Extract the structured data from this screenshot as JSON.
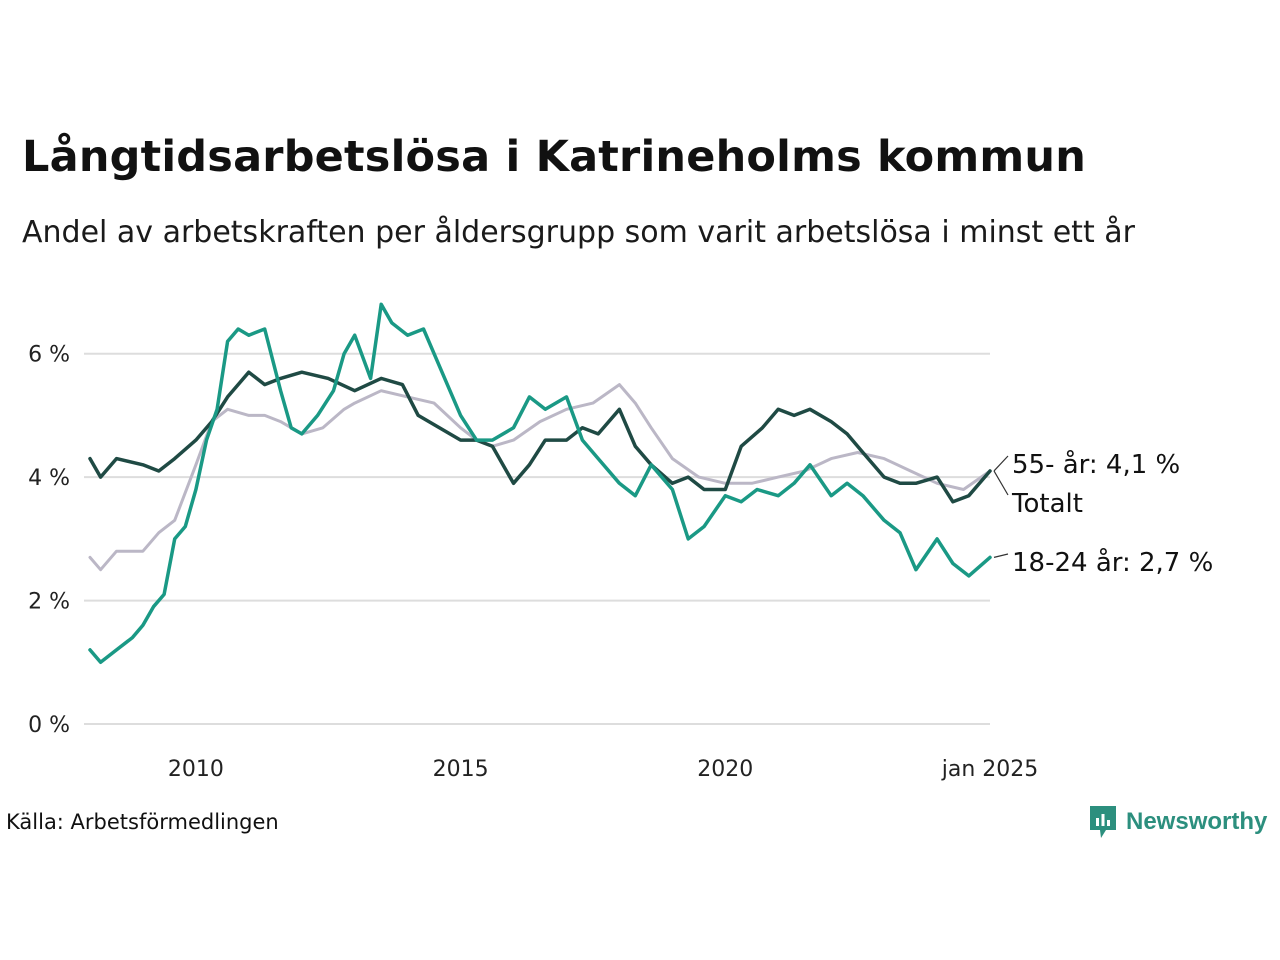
{
  "title": "Långtidsarbetslösa i Katrineholms kommun",
  "subtitle": "Andel av arbetskraften per åldersgrupp som varit arbetslösa i minst ett år",
  "source": "Källa: Arbetsförmedlingen",
  "brand": "Newsworthy",
  "colors": {
    "young": "#1a9985",
    "total": "#1f4a44",
    "old": "#bbb7c6",
    "grid": "#dddddd",
    "brand": "#2c8f7e"
  },
  "chart_data": {
    "type": "line",
    "ylim": [
      0,
      7
    ],
    "yticks": [
      {
        "v": 0,
        "label": "0 %"
      },
      {
        "v": 2,
        "label": "2 %"
      },
      {
        "v": 4,
        "label": "4 %"
      },
      {
        "v": 6,
        "label": "6 %"
      }
    ],
    "xticks": [
      {
        "v": 2010,
        "label": "2010"
      },
      {
        "v": 2015,
        "label": "2015"
      },
      {
        "v": 2020,
        "label": "2020"
      },
      {
        "v": 2025,
        "label": "jan 2025"
      }
    ],
    "series": [
      {
        "key": "old",
        "label": "55- år: 4,1 %",
        "x": [
          2008.0,
          2008.2,
          2008.5,
          2009.0,
          2009.3,
          2009.6,
          2010.0,
          2010.3,
          2010.6,
          2011.0,
          2011.3,
          2011.6,
          2012.0,
          2012.4,
          2012.8,
          2013.0,
          2013.5,
          2014.0,
          2014.5,
          2015.0,
          2015.3,
          2015.6,
          2016.0,
          2016.5,
          2017.0,
          2017.5,
          2018.0,
          2018.3,
          2018.6,
          2019.0,
          2019.5,
          2020.0,
          2020.5,
          2021.0,
          2021.5,
          2022.0,
          2022.5,
          2023.0,
          2023.5,
          2024.0,
          2024.5,
          2025.0
        ],
        "y": [
          2.7,
          2.5,
          2.8,
          2.8,
          3.1,
          3.3,
          4.2,
          4.9,
          5.1,
          5.0,
          5.0,
          4.9,
          4.7,
          4.8,
          5.1,
          5.2,
          5.4,
          5.3,
          5.2,
          4.8,
          4.6,
          4.5,
          4.6,
          4.9,
          5.1,
          5.2,
          5.5,
          5.2,
          4.8,
          4.3,
          4.0,
          3.9,
          3.9,
          4.0,
          4.1,
          4.3,
          4.4,
          4.3,
          4.1,
          3.9,
          3.8,
          4.1
        ]
      },
      {
        "key": "total",
        "label": "Totalt",
        "x": [
          2008.0,
          2008.2,
          2008.5,
          2009.0,
          2009.3,
          2009.6,
          2010.0,
          2010.3,
          2010.6,
          2011.0,
          2011.3,
          2011.6,
          2012.0,
          2012.5,
          2013.0,
          2013.5,
          2013.9,
          2014.2,
          2014.6,
          2015.0,
          2015.3,
          2015.6,
          2016.0,
          2016.3,
          2016.6,
          2017.0,
          2017.3,
          2017.6,
          2018.0,
          2018.3,
          2018.6,
          2019.0,
          2019.3,
          2019.6,
          2020.0,
          2020.3,
          2020.7,
          2021.0,
          2021.3,
          2021.6,
          2022.0,
          2022.3,
          2022.6,
          2023.0,
          2023.3,
          2023.6,
          2024.0,
          2024.3,
          2024.6,
          2025.0
        ],
        "y": [
          4.3,
          4.0,
          4.3,
          4.2,
          4.1,
          4.3,
          4.6,
          4.9,
          5.3,
          5.7,
          5.5,
          5.6,
          5.7,
          5.6,
          5.4,
          5.6,
          5.5,
          5.0,
          4.8,
          4.6,
          4.6,
          4.5,
          3.9,
          4.2,
          4.6,
          4.6,
          4.8,
          4.7,
          5.1,
          4.5,
          4.2,
          3.9,
          4.0,
          3.8,
          3.8,
          4.5,
          4.8,
          5.1,
          5.0,
          5.1,
          4.9,
          4.7,
          4.4,
          4.0,
          3.9,
          3.9,
          4.0,
          3.6,
          3.7,
          4.1
        ]
      },
      {
        "key": "young",
        "label": "18-24 år: 2,7 %",
        "x": [
          2008.0,
          2008.2,
          2008.5,
          2008.8,
          2009.0,
          2009.2,
          2009.4,
          2009.6,
          2009.8,
          2010.0,
          2010.2,
          2010.4,
          2010.6,
          2010.8,
          2011.0,
          2011.3,
          2011.6,
          2011.8,
          2012.0,
          2012.3,
          2012.6,
          2012.8,
          2013.0,
          2013.3,
          2013.5,
          2013.7,
          2014.0,
          2014.3,
          2014.6,
          2015.0,
          2015.3,
          2015.6,
          2016.0,
          2016.3,
          2016.6,
          2017.0,
          2017.3,
          2017.6,
          2018.0,
          2018.3,
          2018.6,
          2019.0,
          2019.3,
          2019.6,
          2020.0,
          2020.3,
          2020.6,
          2021.0,
          2021.3,
          2021.6,
          2022.0,
          2022.3,
          2022.6,
          2023.0,
          2023.3,
          2023.6,
          2024.0,
          2024.3,
          2024.6,
          2025.0
        ],
        "y": [
          1.2,
          1.0,
          1.2,
          1.4,
          1.6,
          1.9,
          2.1,
          3.0,
          3.2,
          3.8,
          4.6,
          5.1,
          6.2,
          6.4,
          6.3,
          6.4,
          5.4,
          4.8,
          4.7,
          5.0,
          5.4,
          6.0,
          6.3,
          5.6,
          6.8,
          6.5,
          6.3,
          6.4,
          5.8,
          5.0,
          4.6,
          4.6,
          4.8,
          5.3,
          5.1,
          5.3,
          4.6,
          4.3,
          3.9,
          3.7,
          4.2,
          3.8,
          3.0,
          3.2,
          3.7,
          3.6,
          3.8,
          3.7,
          3.9,
          4.2,
          3.7,
          3.9,
          3.7,
          3.3,
          3.1,
          2.5,
          3.0,
          2.6,
          2.4,
          2.7
        ]
      }
    ]
  }
}
